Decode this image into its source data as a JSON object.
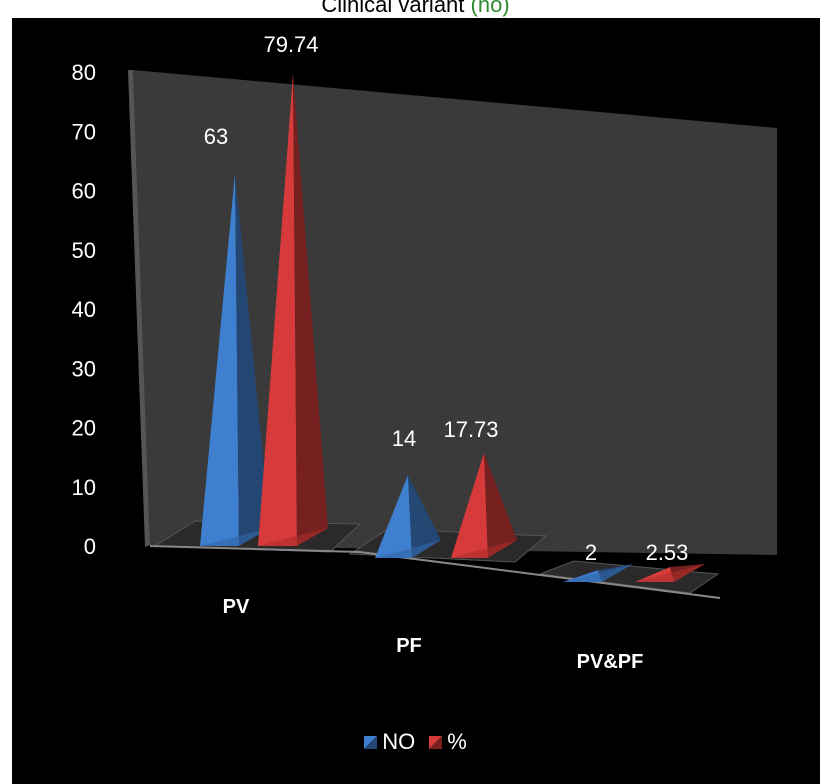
{
  "header": {
    "title_main": "Clinical variant",
    "title_paren": "(no)"
  },
  "colors": {
    "background": "#000000",
    "wall": "#3a3a3a",
    "text": "#ffffff",
    "series_no": "#3f7fd0",
    "series_pct": "#d63a3a"
  },
  "chart_data": {
    "type": "bar",
    "style": "3d-pyramid",
    "categories": [
      "PV",
      "PF",
      "PV&PF"
    ],
    "series": [
      {
        "name": "NO",
        "values": [
          63,
          14,
          2
        ]
      },
      {
        "name": "%",
        "values": [
          79.74,
          17.73,
          2.53
        ]
      }
    ],
    "data_labels": [
      [
        "63",
        "14",
        "2"
      ],
      [
        "79.74",
        "17.73",
        "2.53"
      ]
    ],
    "ylim": [
      0,
      80
    ],
    "yticks": [
      "0",
      "10",
      "20",
      "30",
      "40",
      "50",
      "60",
      "70",
      "80"
    ],
    "grid": false,
    "legend": "bottom"
  }
}
